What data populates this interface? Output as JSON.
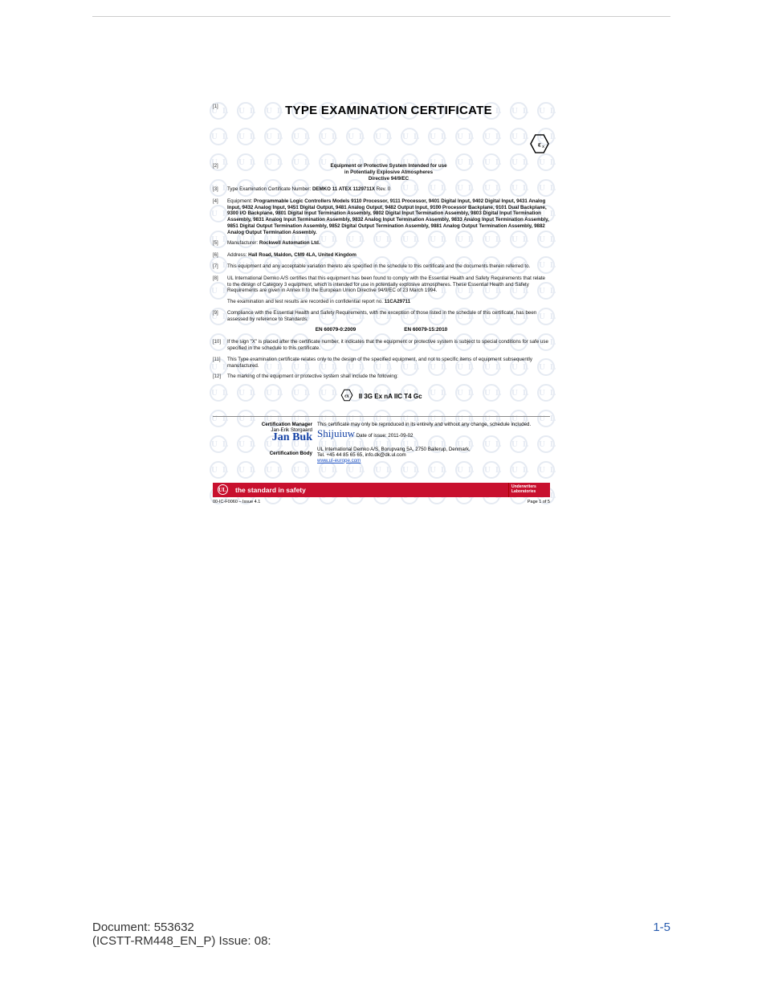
{
  "title": "TYPE EXAMINATION CERTIFICATE",
  "subheader_l1": "Equipment or Protective System Intended for use",
  "subheader_l2": "in Potentially Explosive Atmospheres",
  "subheader_l3": "Directive 94/9/EC",
  "items": {
    "n1": "[1]",
    "n2": "[2]",
    "n3": "[3]",
    "n3_label": "Type Examination Certificate Number:",
    "n3_value": "DEMKO 11 ATEX 1129711X",
    "n3_rev": "Rev. 0",
    "n4": "[4]",
    "n4_label": "Equipment:",
    "n4_value": "Programmable Logic Controllers Models 9110 Processor, 9111 Processor, 9401 Digital Input, 9402 Digital Input, 9431 Analog Input, 9432 Analog Input, 9451 Digital Output, 9481 Analog Output, 9482 Output Input, 9100 Processor Backplane, 9101 Dual Backplane, 9300 I/O Backplane, 9801 Digital Input Termination Assembly, 9802 Digital Input Termination Assembly, 9803 Digital Input Termination Assembly, 9831 Analog Input Termination Assembly, 9832 Analog Input Termination Assembly, 9833 Analog Input Termination Assembly, 9851 Digital Output Termination Assembly, 9852 Digital Output Termination Assembly, 9881 Analog Output Termination Assembly, 9882 Analog Output Termination Assembly.",
    "n5": "[5]",
    "n5_label": "Manufacturer:",
    "n5_value": "Rockwell Automation Ltd.",
    "n6": "[6]",
    "n6_label": "Address:",
    "n6_value": "Hall Road, Maldon, CM9 4LA, United Kingdom",
    "n7": "[7]",
    "n7_text": "This equipment and any acceptable variation thereto are specified in the schedule to this certificate and the documents therein referred to.",
    "n8": "[8]",
    "n8_text": "UL International Demko A/S certifies that this equipment has been found to comply with the Essential Health and Safety Requirements that relate to the design of Category 3 equipment, which is intended for use in potentially explosive atmospheres. These Essential Health and Safety Requirements are given in Annex II to the European Union Directive 94/9/EC of 23 March 1994.",
    "n8b_text_a": "The examination and test results are recorded in confidential report no.",
    "n8b_text_b": "11CA29711",
    "n9": "[9]",
    "n9_text": "Compliance with the Essential Health and Safety Requirements, with the exception of those listed in the schedule of this certificate, has been assessed by reference to Standards:",
    "std1": "EN 60079-0:2009",
    "std2": "EN 60079-15:2010",
    "n10": "[10]",
    "n10_text": "If the sign \"X\" is placed after the certificate number, it indicates that the equipment or protective system is subject to special conditions for safe use specified in the schedule to this certificate.",
    "n11": "[11]",
    "n11_text": "This Type examination certificate relates only to the design of the specified equipment, and not to specific items of equipment subsequently manufactured.",
    "n12": "[12]",
    "n12_text": "The marking of the equipment or protective system shall include the following:"
  },
  "marking": "II 3G    Ex nA IIC T4 Gc",
  "sig": {
    "mgr_label": "Certification Manager",
    "mgr_name": "Jan-Erik Storgaard",
    "note": "This certificate may only be reproduced in its entirety and without any change, schedule included.",
    "date_label": "Date of issue:",
    "date_value": "2011-09-02",
    "body_label": "Certification Body",
    "body_value": "UL International Demko A/S, Borupvang 5A, 2750 Ballerup, Denmark,",
    "tel": "Tel. +45 44 85 65 65, info.dk@dk.ul.com",
    "url": "www.ul-europe.com"
  },
  "bar": {
    "slogan": "the standard in safety",
    "right1": "Underwriters",
    "right2": "Laboratories"
  },
  "certfoot": {
    "left": "00-IC-F0060 – Issue 4.1",
    "right": "Page 1 of 5"
  },
  "footer": {
    "doc_line1": "Document: 553632",
    "doc_line2": "(ICSTT-RM448_EN_P) Issue: 08:",
    "page": "1-5"
  }
}
